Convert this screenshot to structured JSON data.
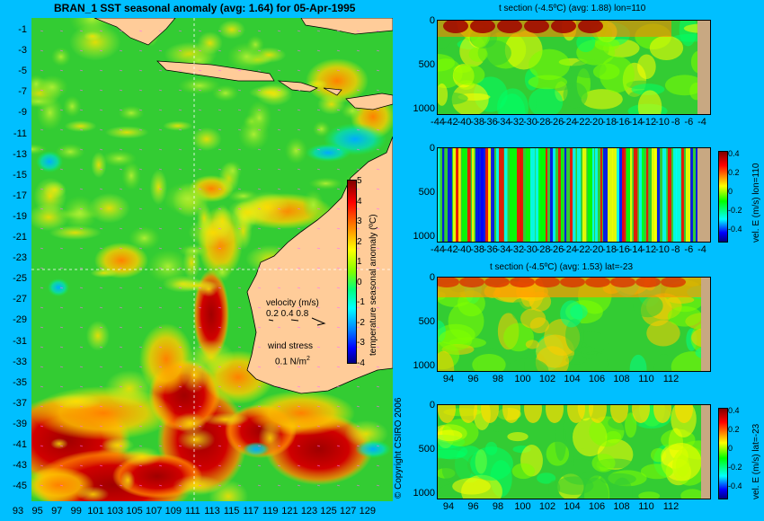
{
  "main_map": {
    "title": "BRAN_1  SST seasonal anomaly (avg: 1.64) for 05-Apr-1995",
    "lat_labels": [
      "-1",
      "-3",
      "-5",
      "-7",
      "-9",
      "-11",
      "-13",
      "-15",
      "-17",
      "-19",
      "-21",
      "-23",
      "-25",
      "-27",
      "-29",
      "-31",
      "-33",
      "-35",
      "-37",
      "-39",
      "-41",
      "-43",
      "-45"
    ],
    "lon_labels": [
      "93",
      "95",
      "97",
      "99",
      "101",
      "103",
      "105",
      "107",
      "109",
      "111",
      "113",
      "115",
      "117",
      "119",
      "121",
      "123",
      "125",
      "127",
      "129"
    ],
    "colorbar": {
      "label": "temperature seasonal anomaly (ºC)",
      "ticks": [
        "5",
        "4",
        "3",
        "2",
        "1",
        "0",
        "-1",
        "-2",
        "-3",
        "-4"
      ]
    },
    "velocity_legend": {
      "title": "velocity (m/s)",
      "values": "0.2 0.4 0.8",
      "wind_title": "wind stress",
      "wind_value": "0.1 N/m",
      "wind_sup": "2"
    },
    "copyright": "© Copyright CSIRO 2006"
  },
  "panels": [
    {
      "title": "t section (-4.5ºC) (avg: 1.88) lon=110",
      "y_ticks": [
        "0",
        "500",
        "1000"
      ],
      "x_ticks": [
        "-44",
        "-42",
        "-40",
        "-38",
        "-36",
        "-34",
        "-32",
        "-30",
        "-28",
        "-26",
        "-24",
        "-22",
        "-20",
        "-18",
        "-16",
        "-14",
        "-12",
        "-10",
        "-8",
        "-6",
        "-4"
      ],
      "colorbar": null
    },
    {
      "title": "",
      "y_ticks": [
        "0",
        "500",
        "1000"
      ],
      "x_ticks": [
        "-44",
        "-42",
        "-40",
        "-38",
        "-36",
        "-34",
        "-32",
        "-30",
        "-28",
        "-26",
        "-24",
        "-22",
        "-20",
        "-18",
        "-16",
        "-14",
        "-12",
        "-10",
        "-8",
        "-6",
        "-4"
      ],
      "colorbar": {
        "label": "vel. E (m/s) lon=110",
        "ticks": [
          "0.4",
          "0.2",
          "0",
          "-0.2",
          "-0.4"
        ]
      }
    },
    {
      "title": "t section (-4.5ºC) (avg: 1.53) lat=-23",
      "y_ticks": [
        "0",
        "500",
        "1000"
      ],
      "x_ticks": [
        "94",
        "96",
        "98",
        "100",
        "102",
        "104",
        "106",
        "108",
        "110",
        "112"
      ],
      "colorbar": null
    },
    {
      "title": "",
      "y_ticks": [
        "0",
        "500",
        "1000"
      ],
      "x_ticks": [
        "94",
        "96",
        "98",
        "100",
        "102",
        "104",
        "106",
        "108",
        "110",
        "112"
      ],
      "colorbar": {
        "label": "vel. E (m/s) lat=-23",
        "ticks": [
          "0.4",
          "0.2",
          "0",
          "-0.2",
          "-0.4"
        ]
      }
    }
  ],
  "colors": {
    "background": "#00bfff",
    "land": "#ffcc99",
    "section_land": "#c8a882",
    "anomaly_hot": "#a50000",
    "anomaly_cold": "#0000a0"
  }
}
